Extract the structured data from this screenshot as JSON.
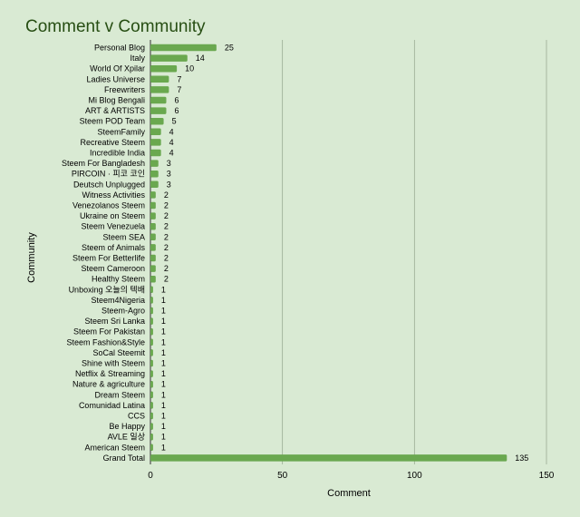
{
  "chart_data": {
    "type": "bar",
    "orientation": "horizontal",
    "title": "Comment v Community",
    "xlabel": "Comment",
    "ylabel": "Community",
    "xlim": [
      0,
      150
    ],
    "xticks": [
      0,
      50,
      100,
      150
    ],
    "grid": true,
    "bar_color": "#6aa84f",
    "title_color": "#274e13",
    "background": "#d9ead3",
    "categories": [
      "Personal Blog",
      "Italy",
      "World Of Xpilar",
      "Ladies Universe",
      "Freewriters",
      "Mi Blog Bengali",
      "ART & ARTISTS",
      "Steem POD Team",
      "SteemFamily",
      "Recreative Steem",
      "Incredible India",
      "Steem For Bangladesh",
      "PIRCOIN · 피코 코인",
      "Deutsch Unplugged",
      "Witness Activities",
      "Venezolanos Steem",
      "Ukraine on Steem",
      "Steem Venezuela",
      "Steem SEA",
      "Steem of Animals",
      "Steem For Betterlife",
      "Steem Cameroon",
      "Healthy Steem",
      "Unboxing 오늘의 텍배",
      "Steem4Nigeria",
      "Steem-Agro",
      "Steem Sri Lanka",
      "Steem For Pakistan",
      "Steem Fashion&Style",
      "SoCal Steemit",
      "Shine with Steem",
      "Netflix & Streaming",
      "Nature & agriculture",
      "Dream Steem",
      "Comunidad Latina",
      "CCS",
      "Be Happy",
      "AVLE 일상",
      "American Steem",
      "Grand Total"
    ],
    "values": [
      25,
      14,
      10,
      7,
      7,
      6,
      6,
      5,
      4,
      4,
      4,
      3,
      3,
      3,
      2,
      2,
      2,
      2,
      2,
      2,
      2,
      2,
      2,
      1,
      1,
      1,
      1,
      1,
      1,
      1,
      1,
      1,
      1,
      1,
      1,
      1,
      1,
      1,
      1,
      135
    ]
  }
}
